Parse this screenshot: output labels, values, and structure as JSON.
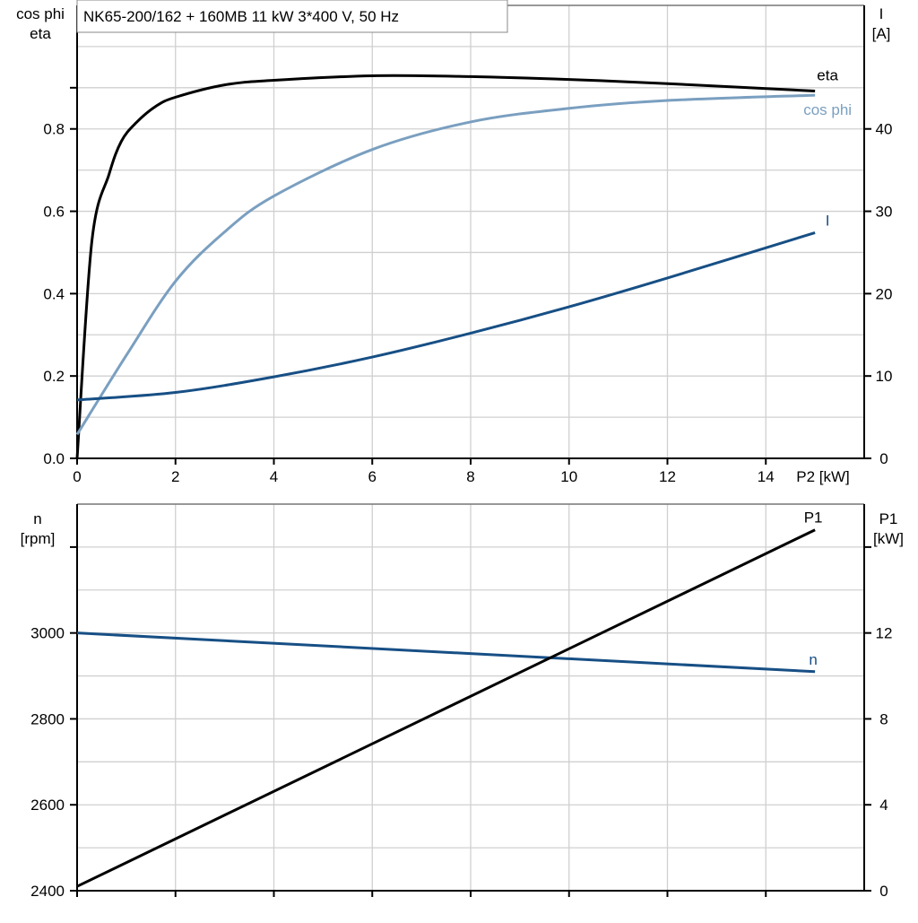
{
  "chart_data": [
    {
      "type": "line",
      "title": "NK65-200/162 + 160MB   11 kW   3*400 V, 50 Hz",
      "xlabel": "P2 [kW]",
      "ylabel_left": [
        "cos phi",
        "eta"
      ],
      "ylabel_right": [
        "I",
        "[A]"
      ],
      "xlim": [
        0,
        16
      ],
      "ylim_left": [
        0,
        1.1
      ],
      "ylim_right": [
        0,
        55
      ],
      "x_ticks": [
        0,
        2,
        4,
        6,
        8,
        10,
        12,
        14
      ],
      "y_ticks_left": [
        "0.0",
        "0.2",
        "0.4",
        "0.6",
        "0.8"
      ],
      "y_ticks_right": [
        "0",
        "10",
        "20",
        "30",
        "40"
      ],
      "grid": true,
      "series": [
        {
          "name": "eta",
          "axis": "left",
          "color": "#000000",
          "x": [
            0,
            0.3,
            0.65,
            0.9,
            1.2,
            1.6,
            2,
            3,
            4,
            6,
            8,
            10,
            12,
            15
          ],
          "y": [
            0,
            0.527,
            0.69,
            0.77,
            0.815,
            0.855,
            0.877,
            0.907,
            0.918,
            0.929,
            0.927,
            0.92,
            0.91,
            0.892
          ]
        },
        {
          "name": "cos phi",
          "axis": "left",
          "color": "#7a9fc0",
          "x": [
            0,
            1,
            2,
            3,
            4,
            6,
            8,
            10,
            12,
            15
          ],
          "y": [
            0.058,
            0.25,
            0.43,
            0.55,
            0.637,
            0.75,
            0.817,
            0.85,
            0.869,
            0.882
          ]
        },
        {
          "name": "I",
          "axis": "right",
          "color": "#174f85",
          "x": [
            0,
            2,
            4,
            6,
            8,
            10,
            12,
            15
          ],
          "y": [
            7.1,
            8.0,
            9.9,
            12.3,
            15.2,
            18.4,
            21.9,
            27.4
          ]
        }
      ]
    },
    {
      "type": "line",
      "xlim": [
        0,
        16
      ],
      "ylabel_left": [
        "n",
        "[rpm]"
      ],
      "ylabel_right": [
        "P1",
        "[kW]"
      ],
      "ylim_left": [
        2400,
        3300
      ],
      "ylim_right": [
        0,
        18
      ],
      "x_ticks": [
        0,
        2,
        4,
        6,
        8,
        10,
        12,
        14
      ],
      "y_ticks_left": [
        "2400",
        "2600",
        "2800",
        "3000"
      ],
      "y_ticks_right": [
        "0",
        "4",
        "8",
        "12"
      ],
      "grid": true,
      "series": [
        {
          "name": "n",
          "axis": "left",
          "color": "#174f85",
          "x": [
            0,
            15
          ],
          "y": [
            3000,
            2910
          ]
        },
        {
          "name": "P1",
          "axis": "right",
          "color": "#000000",
          "x": [
            0,
            15
          ],
          "y": [
            0.2,
            16.8
          ]
        }
      ]
    }
  ]
}
